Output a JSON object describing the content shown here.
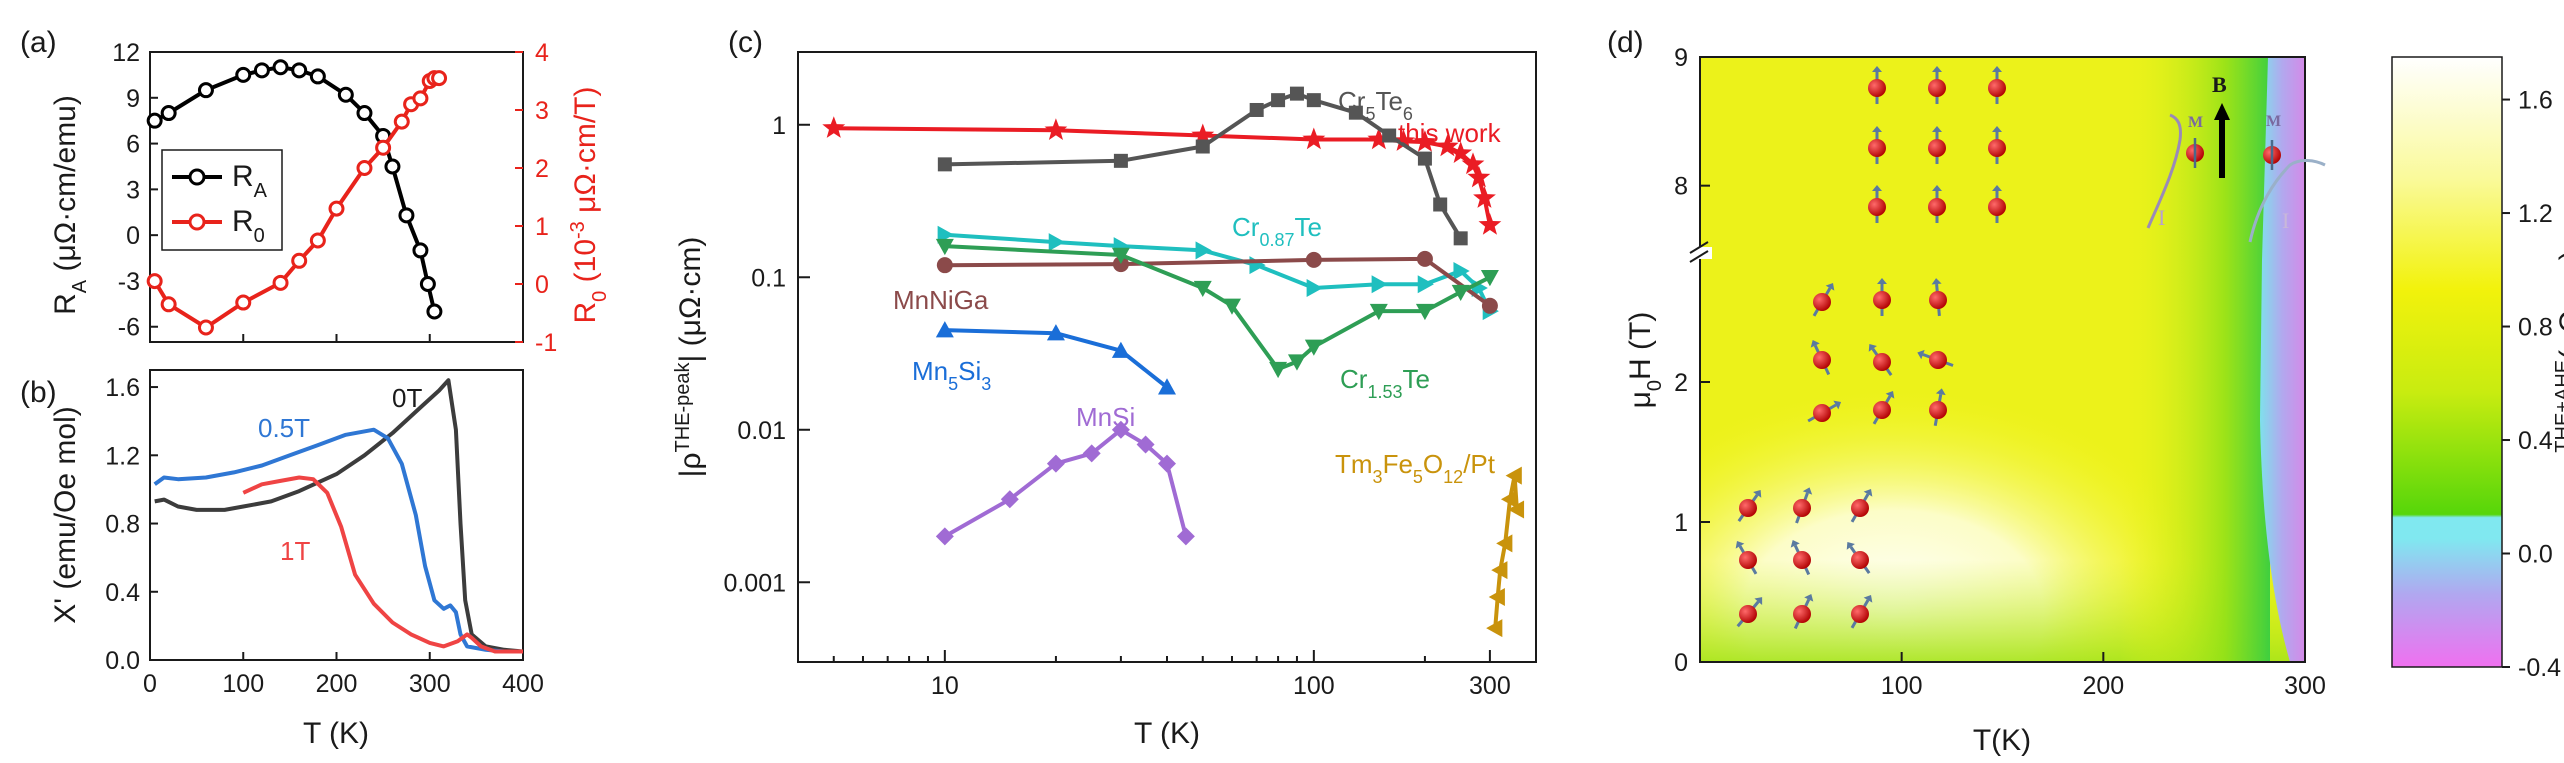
{
  "panel_labels": [
    "(a)",
    "(b)",
    "(c)",
    "(d)"
  ],
  "chart_data": [
    {
      "id": "a",
      "type": "line",
      "xlabel": "",
      "ylabel_left": "R_A (μΩ·cm/emu)",
      "ylabel_right": "R_0 (10^-3 μΩ·cm/T)",
      "xlim": [
        0,
        400
      ],
      "ylim_left": [
        -7,
        12
      ],
      "ylim_right": [
        -1,
        4
      ],
      "yticks_left": [
        "12",
        "9",
        "6",
        "3",
        "0",
        "-3",
        "-6"
      ],
      "yticks_right": [
        "4",
        "3",
        "2",
        "1",
        "0",
        "-1"
      ],
      "legend": [
        "R_A",
        "R_0"
      ],
      "series": [
        {
          "name": "R_A",
          "color": "#000000",
          "axis": "left",
          "x": [
            5,
            20,
            60,
            100,
            120,
            140,
            160,
            180,
            210,
            230,
            250,
            260,
            275,
            290,
            298,
            305
          ],
          "y": [
            7.5,
            8.0,
            9.5,
            10.5,
            10.8,
            11.0,
            10.8,
            10.4,
            9.2,
            8.0,
            6.5,
            4.5,
            1.3,
            -1.0,
            -3.2,
            -5.0
          ]
        },
        {
          "name": "R_0",
          "color": "#e8231b",
          "axis": "right",
          "x": [
            5,
            20,
            60,
            100,
            140,
            160,
            180,
            200,
            230,
            250,
            270,
            280,
            290,
            300,
            305,
            310
          ],
          "y": [
            0.05,
            -0.35,
            -0.75,
            -0.32,
            0.02,
            0.4,
            0.75,
            1.3,
            2.0,
            2.35,
            2.8,
            3.1,
            3.2,
            3.5,
            3.55,
            3.55
          ]
        }
      ]
    },
    {
      "id": "b",
      "type": "line",
      "xlabel": "T (K)",
      "ylabel": "X' (emu/Oe mol)",
      "xlim": [
        0,
        400
      ],
      "ylim": [
        0,
        1.7
      ],
      "xticks": [
        "0",
        "100",
        "200",
        "300",
        "400"
      ],
      "yticks": [
        "0.0",
        "0.4",
        "0.8",
        "1.2",
        "1.6"
      ],
      "annotations": [
        "0T",
        "0.5T",
        "1T"
      ],
      "series": [
        {
          "name": "0T",
          "color": "#3c3c3c",
          "x": [
            5,
            15,
            30,
            50,
            80,
            100,
            130,
            160,
            200,
            230,
            260,
            290,
            310,
            320,
            328,
            333,
            338,
            345,
            360,
            380,
            400
          ],
          "y": [
            0.93,
            0.94,
            0.9,
            0.88,
            0.88,
            0.9,
            0.93,
            0.99,
            1.09,
            1.2,
            1.33,
            1.48,
            1.58,
            1.64,
            1.35,
            0.8,
            0.35,
            0.15,
            0.08,
            0.06,
            0.05
          ]
        },
        {
          "name": "0.5T",
          "color": "#2f77d4",
          "x": [
            5,
            15,
            30,
            60,
            90,
            120,
            150,
            180,
            210,
            240,
            255,
            270,
            285,
            295,
            305,
            315,
            322,
            328,
            333,
            340,
            360,
            380,
            400
          ],
          "y": [
            1.03,
            1.07,
            1.06,
            1.07,
            1.1,
            1.14,
            1.2,
            1.26,
            1.32,
            1.35,
            1.3,
            1.15,
            0.85,
            0.55,
            0.35,
            0.3,
            0.32,
            0.28,
            0.15,
            0.08,
            0.06,
            0.05,
            0.05
          ]
        },
        {
          "name": "1T",
          "color": "#ef4444",
          "x": [
            100,
            120,
            140,
            160,
            175,
            190,
            205,
            220,
            240,
            260,
            280,
            300,
            315,
            330,
            340,
            345,
            355,
            370,
            390,
            400
          ],
          "y": [
            0.98,
            1.03,
            1.05,
            1.07,
            1.06,
            0.98,
            0.78,
            0.5,
            0.33,
            0.22,
            0.15,
            0.1,
            0.08,
            0.11,
            0.15,
            0.13,
            0.08,
            0.05,
            0.05,
            0.05
          ]
        }
      ]
    },
    {
      "id": "c",
      "type": "line",
      "xscale": "log",
      "yscale": "log",
      "xlabel": "T (K)",
      "ylabel": "|ρ^THE-peak| (μΩ·cm)",
      "xlim": [
        4,
        400
      ],
      "ylim": [
        0.0003,
        3
      ],
      "xticks": [
        "10",
        "100",
        "300"
      ],
      "yticks": [
        "0.001",
        "0.01",
        "0.1",
        "1"
      ],
      "series": [
        {
          "name": "this work",
          "color": "#ea1c24",
          "marker": "star",
          "x": [
            5,
            20,
            50,
            100,
            150,
            175,
            200,
            230,
            250,
            270,
            280,
            290,
            300
          ],
          "y": [
            0.95,
            0.92,
            0.85,
            0.8,
            0.8,
            0.78,
            0.77,
            0.72,
            0.65,
            0.55,
            0.45,
            0.33,
            0.22
          ]
        },
        {
          "name": "Cr5Te6",
          "color": "#555555",
          "marker": "square",
          "x": [
            10,
            30,
            50,
            70,
            80,
            90,
            100,
            130,
            160,
            200,
            220,
            250
          ],
          "y": [
            0.55,
            0.58,
            0.72,
            1.25,
            1.45,
            1.6,
            1.45,
            1.2,
            0.85,
            0.6,
            0.3,
            0.18
          ]
        },
        {
          "name": "Cr0.87Te",
          "color": "#1fbfbf",
          "marker": "triangle-right",
          "x": [
            10,
            20,
            30,
            50,
            70,
            100,
            150,
            200,
            250,
            280,
            300
          ],
          "y": [
            0.19,
            0.17,
            0.16,
            0.15,
            0.12,
            0.085,
            0.09,
            0.09,
            0.11,
            0.085,
            0.06
          ]
        },
        {
          "name": "MnNiGa",
          "color": "#8b4a4a",
          "marker": "circle",
          "x": [
            10,
            30,
            100,
            200,
            300
          ],
          "y": [
            0.12,
            0.122,
            0.13,
            0.132,
            0.065
          ]
        },
        {
          "name": "Cr1.53Te",
          "color": "#2e9e55",
          "marker": "triangle-down",
          "x": [
            10,
            30,
            50,
            60,
            80,
            90,
            100,
            150,
            200,
            250,
            300
          ],
          "y": [
            0.16,
            0.14,
            0.085,
            0.065,
            0.025,
            0.028,
            0.035,
            0.06,
            0.06,
            0.08,
            0.1
          ]
        },
        {
          "name": "Mn5Si3",
          "color": "#1a6ed8",
          "marker": "triangle-up",
          "x": [
            10,
            20,
            30,
            40
          ],
          "y": [
            0.045,
            0.043,
            0.033,
            0.019
          ]
        },
        {
          "name": "MnSi",
          "color": "#a06bd4",
          "marker": "diamond",
          "x": [
            10,
            15,
            20,
            25,
            30,
            35,
            40,
            45
          ],
          "y": [
            0.002,
            0.0035,
            0.006,
            0.007,
            0.01,
            0.008,
            0.006,
            0.002
          ]
        },
        {
          "name": "Tm3Fe5O12/Pt",
          "color": "#c9930c",
          "marker": "triangle-left",
          "x": [
            310,
            315,
            320,
            330,
            340,
            350,
            355
          ],
          "y": [
            0.0005,
            0.0008,
            0.0012,
            0.0018,
            0.0035,
            0.005,
            0.003
          ]
        }
      ],
      "labels": [
        "Cr5Te6",
        "this work",
        "Cr0.87Te",
        "MnNiGa",
        "Cr1.53Te",
        "Mn5Si3",
        "MnSi",
        "Tm3Fe5O12/Pt"
      ]
    },
    {
      "id": "d",
      "type": "heatmap",
      "xlabel": "T(K)",
      "ylabel": "μ0H (T)",
      "colorbar_label": "ρ^THE+AHE(μΩ·cm)",
      "xlim": [
        0,
        300
      ],
      "xticks": [
        "100",
        "200",
        "300"
      ],
      "yticks_lower": [
        "0",
        "1",
        "2"
      ],
      "yticks_upper": [
        "8",
        "9"
      ],
      "colorbar_ticks": [
        "1.6",
        "1.2",
        "0.8",
        "0.4",
        "0.0",
        "-0.4"
      ],
      "colorbar_range": [
        -0.4,
        1.75
      ],
      "inset_labels": [
        "B",
        "M",
        "M",
        "I",
        "I"
      ]
    }
  ]
}
